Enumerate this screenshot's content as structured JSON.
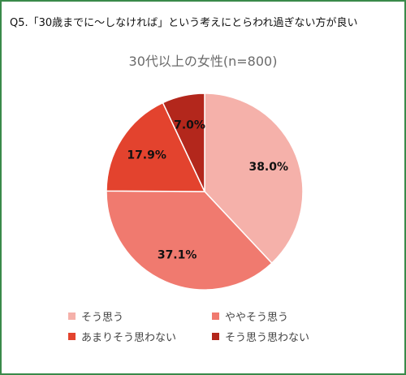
{
  "question": "Q5.「30歳までに〜しなければ」という考えにとらわれ過ぎない方が良い",
  "chart_data": {
    "type": "pie",
    "title": "30代以上の女性(n=800)",
    "categories": [
      "そう思う",
      "ややそう思う",
      "あまりそう思わない",
      "そう思う思わない"
    ],
    "values": [
      38.0,
      37.1,
      17.9,
      7.0
    ],
    "labels": [
      "38.0%",
      "37.1%",
      "17.9%",
      "7.0%"
    ],
    "colors": [
      "#f5b1aa",
      "#f07a6f",
      "#e3432e",
      "#b3271c"
    ],
    "legend_position": "bottom",
    "start_angle": "12 o'clock",
    "direction": "clockwise"
  }
}
